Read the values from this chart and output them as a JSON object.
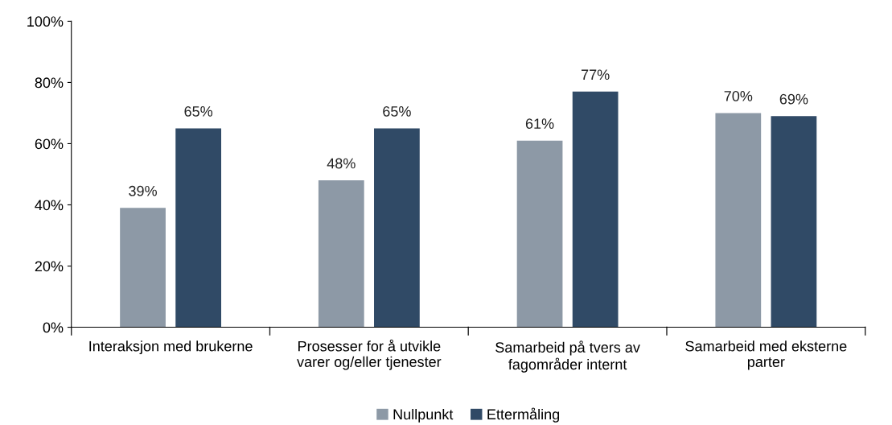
{
  "chart_data": {
    "type": "bar",
    "categories": [
      "Interaksjon med brukerne",
      "Prosesser for å utvikle\nvarer og/eller tjenester",
      "Samarbeid på tvers av\nfagområder internt",
      "Samarbeid med eksterne\nparter"
    ],
    "series": [
      {
        "name": "Nullpunkt",
        "color": "#8d99a6",
        "values": [
          39,
          48,
          61,
          70
        ],
        "value_labels": [
          "39%",
          "48%",
          "61%",
          "70%"
        ]
      },
      {
        "name": "Ettermåling",
        "color": "#304a66",
        "values": [
          65,
          65,
          77,
          69
        ],
        "value_labels": [
          "65%",
          "65%",
          "77%",
          "69%"
        ]
      }
    ],
    "ylim": [
      0,
      100
    ],
    "yticks": [
      {
        "value": 0,
        "label": "0%"
      },
      {
        "value": 20,
        "label": "20%"
      },
      {
        "value": 40,
        "label": "40%"
      },
      {
        "value": 60,
        "label": "60%"
      },
      {
        "value": 80,
        "label": "80%"
      },
      {
        "value": 100,
        "label": "100%"
      }
    ],
    "grid": false,
    "legend": "bottom"
  }
}
